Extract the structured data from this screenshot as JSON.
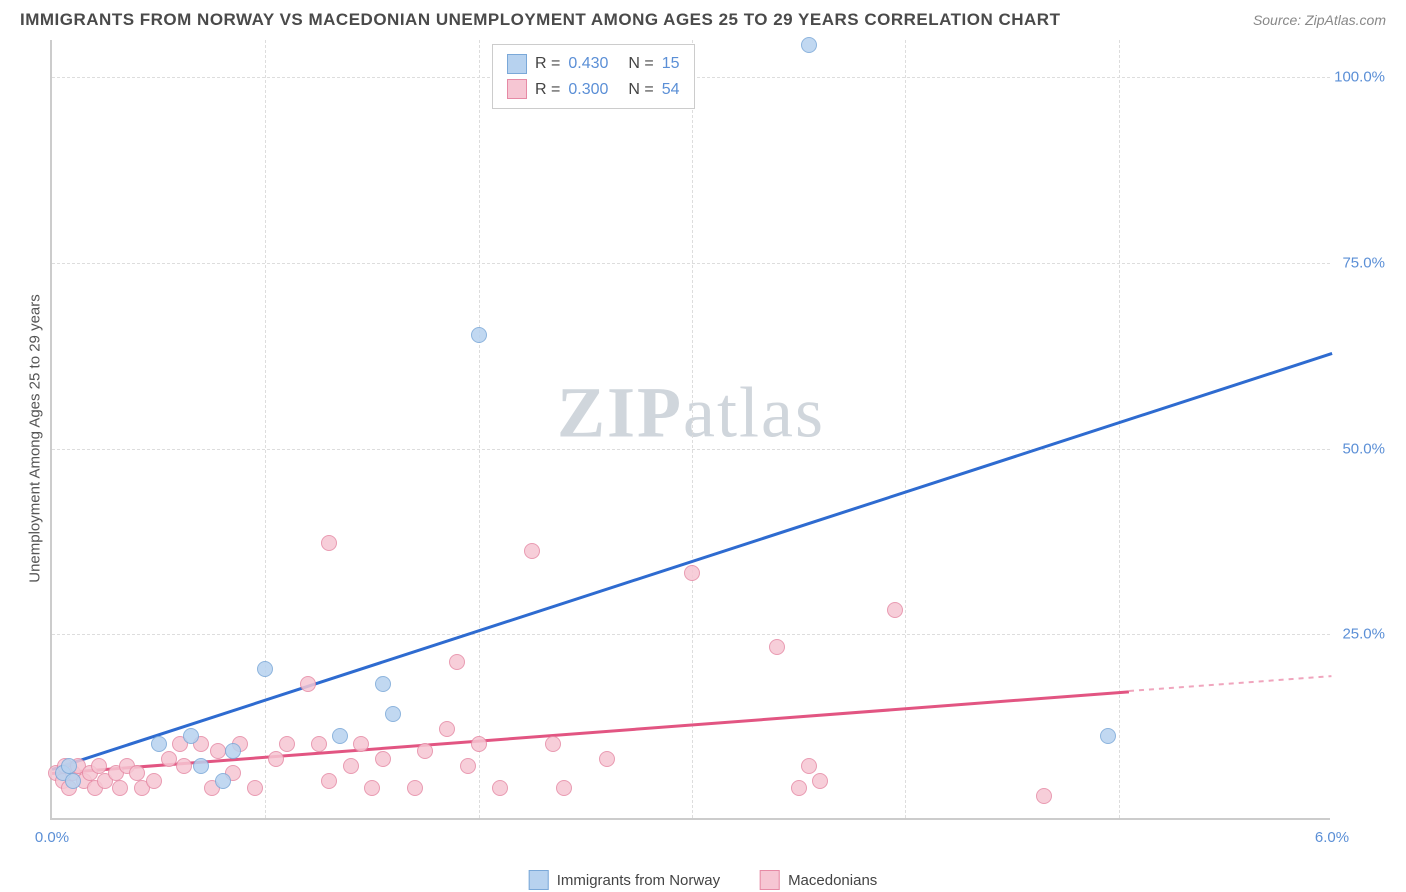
{
  "title": "IMMIGRANTS FROM NORWAY VS MACEDONIAN UNEMPLOYMENT AMONG AGES 25 TO 29 YEARS CORRELATION CHART",
  "source": "Source: ZipAtlas.com",
  "watermark_a": "ZIP",
  "watermark_b": "atlas",
  "chart": {
    "type": "scatter",
    "ylabel": "Unemployment Among Ages 25 to 29 years",
    "xlim": [
      0,
      6.0
    ],
    "ylim": [
      0,
      105
    ],
    "xticks": [
      {
        "v": 0.0,
        "label": "0.0%"
      },
      {
        "v": 6.0,
        "label": "6.0%"
      }
    ],
    "xticks_minor": [
      1.0,
      2.0,
      3.0,
      4.0,
      5.0
    ],
    "yticks": [
      {
        "v": 25,
        "label": "25.0%"
      },
      {
        "v": 50,
        "label": "50.0%"
      },
      {
        "v": 75,
        "label": "75.0%"
      },
      {
        "v": 100,
        "label": "100.0%"
      }
    ],
    "background_color": "#ffffff",
    "grid_color": "#dddddd",
    "axis_color": "#cccccc",
    "series": [
      {
        "name": "Immigrants from Norway",
        "color_fill": "#b7d2ef",
        "color_stroke": "#7aa8d8",
        "marker_r": 8,
        "r_value": "0.430",
        "n_value": "15",
        "trend": {
          "x1": 0.0,
          "y1": 7,
          "x2": 6.0,
          "y2": 63,
          "color": "#2e6bd0",
          "width": 3
        },
        "points": [
          {
            "x": 0.05,
            "y": 6
          },
          {
            "x": 0.08,
            "y": 7
          },
          {
            "x": 0.1,
            "y": 5
          },
          {
            "x": 0.5,
            "y": 10
          },
          {
            "x": 0.65,
            "y": 11
          },
          {
            "x": 0.7,
            "y": 7
          },
          {
            "x": 0.8,
            "y": 5
          },
          {
            "x": 0.85,
            "y": 9
          },
          {
            "x": 1.0,
            "y": 20
          },
          {
            "x": 1.35,
            "y": 11
          },
          {
            "x": 1.55,
            "y": 18
          },
          {
            "x": 1.6,
            "y": 14
          },
          {
            "x": 2.0,
            "y": 65
          },
          {
            "x": 3.55,
            "y": 104
          },
          {
            "x": 4.95,
            "y": 11
          }
        ]
      },
      {
        "name": "Macedonians",
        "color_fill": "#f6c6d3",
        "color_stroke": "#e68aa5",
        "marker_r": 8,
        "r_value": "0.300",
        "n_value": "54",
        "trend": {
          "x1": 0.0,
          "y1": 6.5,
          "x2": 5.05,
          "y2": 17.5,
          "color": "#e25582",
          "width": 2.5
        },
        "trend_dash": {
          "x1": 5.05,
          "y1": 17.5,
          "x2": 6.0,
          "y2": 19.5,
          "color": "#f0a5bd"
        },
        "points": [
          {
            "x": 0.02,
            "y": 6
          },
          {
            "x": 0.05,
            "y": 5
          },
          {
            "x": 0.06,
            "y": 7
          },
          {
            "x": 0.08,
            "y": 4
          },
          {
            "x": 0.1,
            "y": 6
          },
          {
            "x": 0.12,
            "y": 7
          },
          {
            "x": 0.15,
            "y": 5
          },
          {
            "x": 0.18,
            "y": 6
          },
          {
            "x": 0.2,
            "y": 4
          },
          {
            "x": 0.22,
            "y": 7
          },
          {
            "x": 0.25,
            "y": 5
          },
          {
            "x": 0.3,
            "y": 6
          },
          {
            "x": 0.32,
            "y": 4
          },
          {
            "x": 0.35,
            "y": 7
          },
          {
            "x": 0.4,
            "y": 6
          },
          {
            "x": 0.42,
            "y": 4
          },
          {
            "x": 0.48,
            "y": 5
          },
          {
            "x": 0.55,
            "y": 8
          },
          {
            "x": 0.6,
            "y": 10
          },
          {
            "x": 0.62,
            "y": 7
          },
          {
            "x": 0.7,
            "y": 10
          },
          {
            "x": 0.75,
            "y": 4
          },
          {
            "x": 0.78,
            "y": 9
          },
          {
            "x": 0.85,
            "y": 6
          },
          {
            "x": 0.88,
            "y": 10
          },
          {
            "x": 0.95,
            "y": 4
          },
          {
            "x": 1.05,
            "y": 8
          },
          {
            "x": 1.1,
            "y": 10
          },
          {
            "x": 1.2,
            "y": 18
          },
          {
            "x": 1.25,
            "y": 10
          },
          {
            "x": 1.3,
            "y": 5
          },
          {
            "x": 1.3,
            "y": 37
          },
          {
            "x": 1.4,
            "y": 7
          },
          {
            "x": 1.45,
            "y": 10
          },
          {
            "x": 1.5,
            "y": 4
          },
          {
            "x": 1.55,
            "y": 8
          },
          {
            "x": 1.7,
            "y": 4
          },
          {
            "x": 1.75,
            "y": 9
          },
          {
            "x": 1.85,
            "y": 12
          },
          {
            "x": 1.9,
            "y": 21
          },
          {
            "x": 1.95,
            "y": 7
          },
          {
            "x": 2.0,
            "y": 10
          },
          {
            "x": 2.1,
            "y": 4
          },
          {
            "x": 2.25,
            "y": 36
          },
          {
            "x": 2.35,
            "y": 10
          },
          {
            "x": 2.4,
            "y": 4
          },
          {
            "x": 2.6,
            "y": 8
          },
          {
            "x": 3.0,
            "y": 33
          },
          {
            "x": 3.4,
            "y": 23
          },
          {
            "x": 3.5,
            "y": 4
          },
          {
            "x": 3.55,
            "y": 7
          },
          {
            "x": 3.6,
            "y": 5
          },
          {
            "x": 3.95,
            "y": 28
          },
          {
            "x": 4.65,
            "y": 3
          }
        ]
      }
    ]
  }
}
